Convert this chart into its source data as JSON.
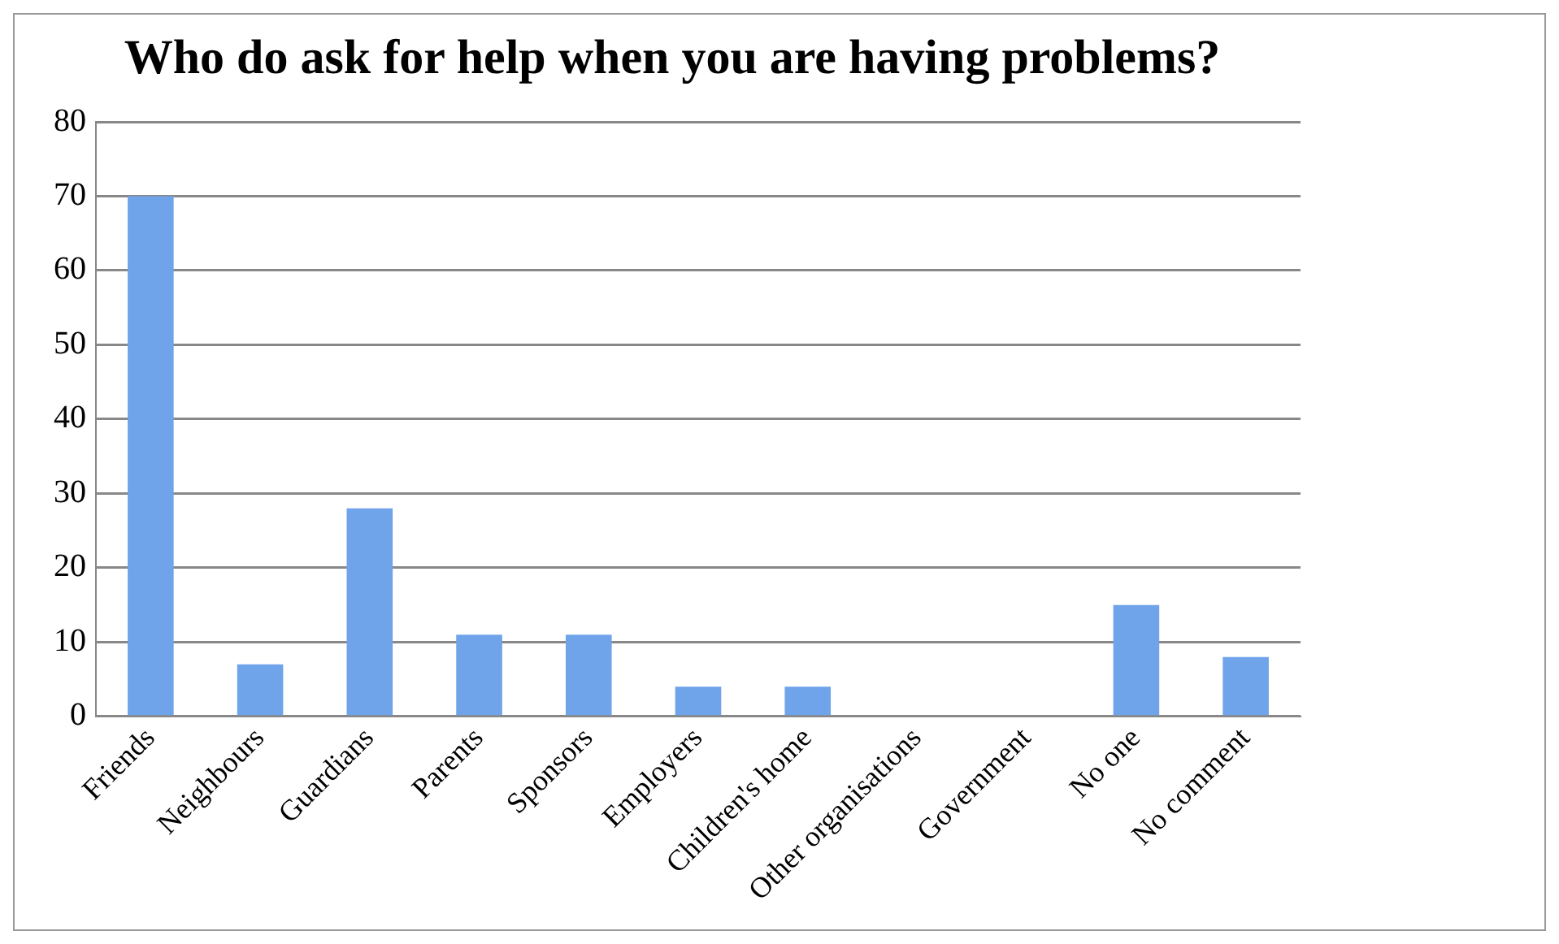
{
  "chart_data": {
    "type": "bar",
    "title": "Who do ask for help when you are having problems?",
    "categories": [
      "Friends",
      "Neighbours",
      "Guardians",
      "Parents",
      "Sponsors",
      "Employers",
      "Children's home",
      "Other organisations",
      "Government",
      "No one",
      "No comment"
    ],
    "values": [
      70,
      7,
      28,
      11,
      11,
      4,
      4,
      0,
      0,
      15,
      8
    ],
    "color": "#6fa3ea",
    "ylim": [
      0,
      80
    ],
    "yticks": [
      0,
      10,
      20,
      30,
      40,
      50,
      60,
      70,
      80
    ],
    "grid": "y",
    "legend": false
  }
}
